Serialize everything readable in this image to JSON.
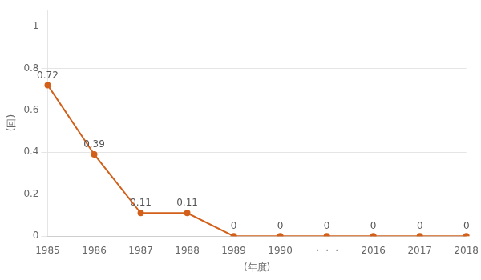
{
  "chart_data": {
    "type": "line",
    "categories": [
      "1985",
      "1986",
      "1987",
      "1988",
      "1989",
      "1990",
      "・・・",
      "2016",
      "2017",
      "2018"
    ],
    "values": [
      0.72,
      0.39,
      0.11,
      0.11,
      0.0,
      0.0,
      0.0,
      0.0,
      0.0,
      0.0
    ],
    "color": "#D2601A",
    "marker": "circle",
    "ylim": [
      0,
      1.08
    ],
    "yticks": [
      0,
      0.2,
      0.4,
      0.6,
      0.8,
      1
    ],
    "grid": "y",
    "data_labels": true,
    "ylabel": "(回)",
    "xlabel": "(年度)"
  }
}
